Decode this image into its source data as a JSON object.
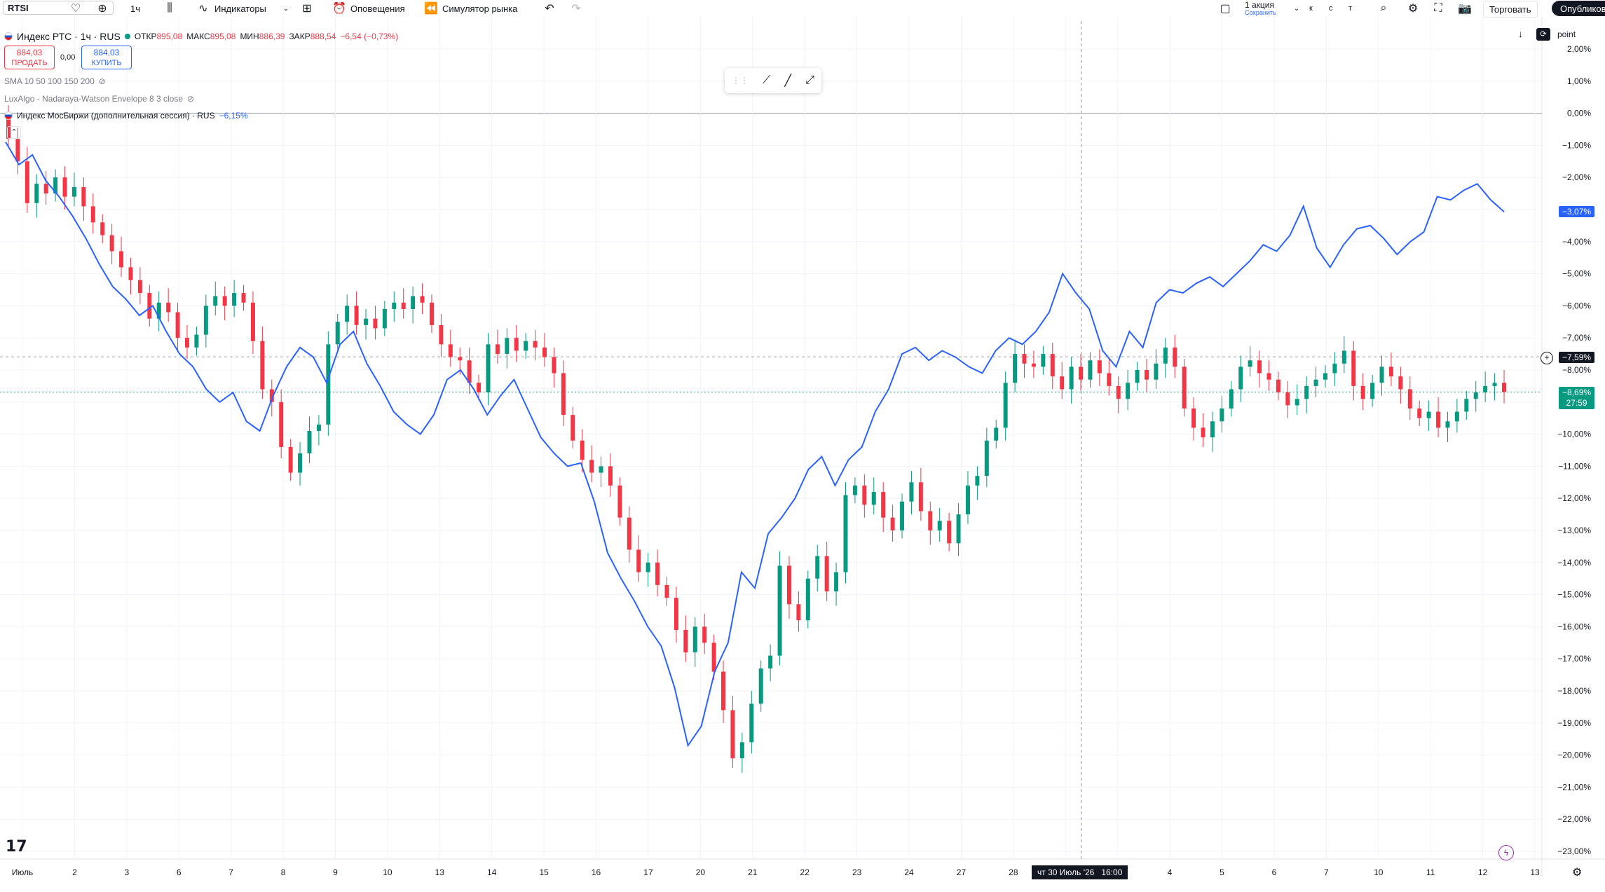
{
  "toolbar": {
    "symbol": "RTSI",
    "interval": "1ч",
    "indicators": "Индикаторы",
    "alerts": "Оповещения",
    "replay": "Симулятор рынка",
    "layout_title": "1 акция",
    "layout_sub": "Сохранить",
    "k": "к",
    "s": "с",
    "t": "т",
    "trade": "Торговать",
    "publish": "Опубликовать"
  },
  "legend": {
    "main_title": "Индекс РТС · 1ч · RUS",
    "open_label": "ОТКР",
    "open": "895,08",
    "high_label": "МАКС",
    "high": "895,08",
    "low_label": "МИН",
    "low": "886,39",
    "close_label": "ЗАКР",
    "close": "888,54",
    "change": "−6,54 (−0,73%)",
    "sell_price": "884,03",
    "sell_label": "ПРОДАТЬ",
    "spread": "0,00",
    "buy_price": "884,03",
    "buy_label": "КУПИТЬ",
    "sma": "SMA 10 50 100 150 200",
    "envelope": "LuxAlgo - Nadaraya-Watson Envelope 8 3 close",
    "compare_name": "Индекс МосБиржи (дополнительная сессия) · RUS",
    "compare_change": "−6,15%"
  },
  "price_axis": {
    "unit": "point",
    "ticks": [
      "2,00%",
      "1,00%",
      "0,00%",
      "−1,00%",
      "−2,00%",
      "−3,00%",
      "−4,00%",
      "−5,00%",
      "−6,00%",
      "−7,00%",
      "−8,00%",
      "−9,00%",
      "−10,00%",
      "−11,00%",
      "−12,00%",
      "−13,00%",
      "−14,00%",
      "−15,00%",
      "−16,00%",
      "−17,00%",
      "−18,00%",
      "−19,00%",
      "−20,00%",
      "−21,00%",
      "−22,00%",
      "−23,00%"
    ],
    "compare_tag": "−3,07%",
    "cross_tag": "−7,59%",
    "last_tag": "−8,69%",
    "countdown": "27:59"
  },
  "time_axis": {
    "ticks": [
      "Июль",
      "2",
      "3",
      "6",
      "7",
      "8",
      "9",
      "10",
      "13",
      "14",
      "15",
      "16",
      "17",
      "20",
      "21",
      "22",
      "23",
      "24",
      "27",
      "28",
      "29",
      "Авг",
      "4",
      "5",
      "6",
      "7",
      "10",
      "11",
      "12",
      "13"
    ],
    "crosshair_label": "чт 30 Июль '26   16:00"
  },
  "colors": {
    "up": "#089981",
    "down": "#f23645",
    "compare": "#2962ff",
    "grid": "#f0f3fa"
  },
  "chart_data": {
    "type": "candlestick+line",
    "y_unit": "%",
    "ylim": [
      -23.5,
      2.5
    ],
    "x_range": [
      "Июль",
      "13 Авг"
    ],
    "series": [
      {
        "name": "Индекс РТС",
        "kind": "candles",
        "close_pct": [
          -0.8,
          -1.5,
          -2.8,
          -2.2,
          -2.5,
          -2.0,
          -2.6,
          -2.3,
          -2.9,
          -3.4,
          -3.8,
          -4.3,
          -4.8,
          -5.2,
          -5.6,
          -6.4,
          -5.9,
          -6.2,
          -7.0,
          -7.3,
          -6.9,
          -6.0,
          -5.7,
          -6.0,
          -5.6,
          -5.9,
          -7.1,
          -8.6,
          -9.0,
          -10.4,
          -11.2,
          -10.6,
          -9.9,
          -9.7,
          -7.2,
          -6.5,
          -6.0,
          -6.6,
          -6.4,
          -6.7,
          -6.1,
          -5.9,
          -6.1,
          -5.7,
          -5.9,
          -6.6,
          -7.2,
          -7.6,
          -7.7,
          -8.4,
          -8.7,
          -7.2,
          -7.5,
          -7.0,
          -7.4,
          -7.1,
          -7.3,
          -7.6,
          -8.1,
          -9.4,
          -10.2,
          -10.8,
          -11.2,
          -11.0,
          -11.6,
          -12.6,
          -13.6,
          -14.3,
          -14.0,
          -14.7,
          -15.1,
          -16.1,
          -16.8,
          -16.0,
          -16.5,
          -17.4,
          -18.6,
          -20.1,
          -19.6,
          -18.4,
          -17.3,
          -16.9,
          -14.1,
          -15.3,
          -15.8,
          -14.5,
          -13.8,
          -14.9,
          -14.3,
          -11.9,
          -11.6,
          -12.2,
          -11.8,
          -12.6,
          -13.0,
          -12.1,
          -11.5,
          -12.4,
          -13.0,
          -12.7,
          -13.4,
          -12.5,
          -11.6,
          -11.3,
          -10.2,
          -9.8,
          -8.4,
          -7.5,
          -7.8,
          -7.9,
          -7.5,
          -8.2,
          -8.6,
          -7.9,
          -8.3,
          -7.7,
          -8.1,
          -8.5,
          -8.9,
          -8.4,
          -8.0,
          -8.3,
          -7.8,
          -7.3,
          -7.9,
          -9.2,
          -9.8,
          -10.1,
          -9.6,
          -9.2,
          -8.6,
          -7.9,
          -7.7,
          -8.1,
          -8.3,
          -8.7,
          -9.1,
          -8.9,
          -8.5,
          -8.3,
          -8.1,
          -7.8,
          -7.4,
          -8.5,
          -8.9,
          -8.4,
          -7.9,
          -8.2,
          -8.6,
          -9.2,
          -9.5,
          -9.3,
          -9.8,
          -9.6,
          -9.3,
          -8.9,
          -8.7,
          -8.5,
          -8.4,
          -8.69
        ],
        "last": 888.54
      },
      {
        "name": "Индекс МосБиржи (дополнительная сессия)",
        "kind": "line",
        "pct": [
          -0.9,
          -1.6,
          -1.3,
          -2.1,
          -2.6,
          -3.2,
          -3.9,
          -4.7,
          -5.4,
          -5.8,
          -6.3,
          -6.0,
          -6.8,
          -7.5,
          -7.9,
          -8.6,
          -9.0,
          -8.7,
          -9.6,
          -9.9,
          -8.8,
          -7.9,
          -7.3,
          -7.6,
          -8.4,
          -7.2,
          -6.8,
          -7.8,
          -8.5,
          -9.3,
          -9.7,
          -10.0,
          -9.4,
          -8.3,
          -8.0,
          -8.6,
          -9.4,
          -8.8,
          -8.3,
          -9.2,
          -10.1,
          -10.6,
          -11.0,
          -10.9,
          -12.1,
          -13.7,
          -14.5,
          -15.2,
          -16.0,
          -16.6,
          -17.9,
          -19.7,
          -19.1,
          -17.4,
          -16.5,
          -14.3,
          -14.8,
          -13.1,
          -12.6,
          -12.0,
          -11.1,
          -10.7,
          -11.6,
          -10.8,
          -10.4,
          -9.3,
          -8.6,
          -7.5,
          -7.3,
          -7.7,
          -7.4,
          -7.6,
          -7.9,
          -8.1,
          -7.4,
          -7.0,
          -7.2,
          -6.8,
          -6.2,
          -5.0,
          -5.6,
          -6.1,
          -7.4,
          -7.9,
          -6.8,
          -7.3,
          -5.9,
          -5.5,
          -5.6,
          -5.3,
          -5.1,
          -5.4,
          -5.0,
          -4.6,
          -4.1,
          -4.3,
          -3.8,
          -2.9,
          -4.2,
          -4.8,
          -4.1,
          -3.6,
          -3.5,
          -3.9,
          -4.4,
          -4.0,
          -3.7,
          -2.6,
          -2.7,
          -2.4,
          -2.2,
          -2.7,
          -3.07
        ]
      }
    ]
  }
}
